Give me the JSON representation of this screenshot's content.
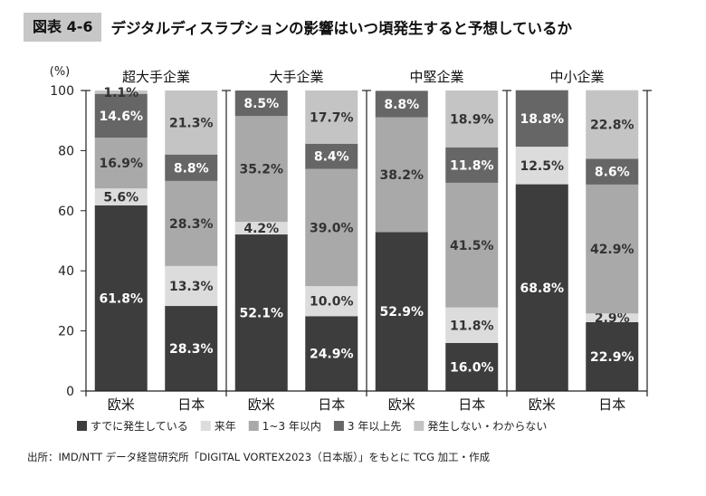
{
  "figure": {
    "number": "図表 4-6",
    "title": "デジタルディスラプションの影響はいつ頃発生すると予想しているか",
    "source": "出所：IMD/NTT データ経営研究所「DIGITAL VORTEX2023（日本版）」をもとに TCG 加工・作成"
  },
  "chart_data": {
    "type": "bar",
    "stacked": true,
    "unit": "(%)",
    "ylim": [
      0,
      100
    ],
    "yticks": [
      0,
      20,
      40,
      60,
      80,
      100
    ],
    "grid": false,
    "legend_position": "bottom",
    "groups": [
      "超大手企業",
      "大手企業",
      "中堅企業",
      "中小企業"
    ],
    "categories": [
      "欧米",
      "日本",
      "欧米",
      "日本",
      "欧米",
      "日本",
      "欧米",
      "日本"
    ],
    "series": [
      {
        "name": "すでに発生している",
        "color": "#3d3d3d",
        "label_color": "#ffffff",
        "values": [
          61.8,
          28.3,
          52.1,
          24.9,
          52.9,
          16.0,
          68.8,
          22.9
        ]
      },
      {
        "name": "来年",
        "color": "#dcdcdc",
        "label_color": "#333333",
        "values": [
          5.6,
          13.3,
          4.2,
          10.0,
          null,
          11.8,
          12.5,
          2.9
        ]
      },
      {
        "name": "1~3 年以内",
        "color": "#a9a9a9",
        "label_color": "#333333",
        "values": [
          16.9,
          28.3,
          35.2,
          39.0,
          38.2,
          41.5,
          null,
          42.9
        ]
      },
      {
        "name": "3 年以上先",
        "color": "#666666",
        "label_color": "#ffffff",
        "values": [
          14.6,
          8.8,
          8.5,
          8.4,
          8.8,
          11.8,
          18.8,
          8.6
        ]
      },
      {
        "name": "発生しない・わからない",
        "color": "#c4c4c4",
        "label_color": "#333333",
        "values": [
          1.1,
          21.3,
          null,
          17.7,
          null,
          18.9,
          null,
          22.8
        ]
      }
    ]
  }
}
